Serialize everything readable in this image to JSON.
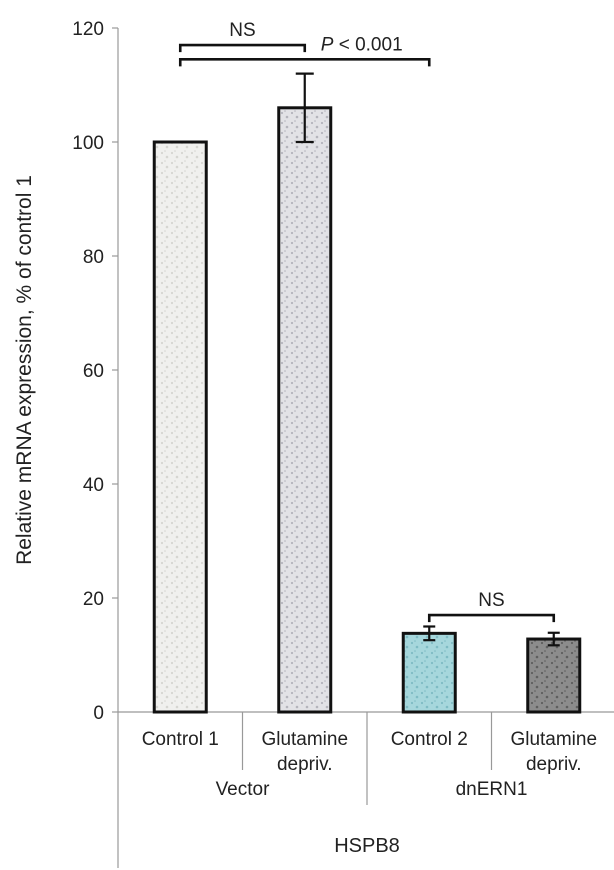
{
  "chart_data": {
    "type": "bar",
    "ylabel": "Relative mRNA expression, % of control 1",
    "ylim": [
      0,
      120
    ],
    "yticks": [
      0,
      20,
      40,
      60,
      80,
      100,
      120
    ],
    "categories": [
      "Control 1",
      "Glutamine depriv.",
      "Control 2",
      "Glutamine depriv."
    ],
    "category_lines": [
      [
        "Control 1"
      ],
      [
        "Glutamine",
        "depriv."
      ],
      [
        "Control 2"
      ],
      [
        "Glutamine",
        "depriv."
      ]
    ],
    "values": [
      100,
      106,
      13.8,
      12.8
    ],
    "errors": [
      0,
      6,
      1.2,
      1.1
    ],
    "groups": [
      {
        "label": "Vector",
        "members": [
          0,
          1
        ]
      },
      {
        "label": "dnERN1",
        "members": [
          2,
          3
        ]
      }
    ],
    "xlabel": "HSPB8",
    "bar_fills": [
      "#f0f0ee",
      "#e2e2e6",
      "#a6d7dc",
      "#8c8c8c"
    ],
    "annotations": [
      {
        "from": 0,
        "to": 1,
        "y": 117,
        "italic": "",
        "text": "NS"
      },
      {
        "from": 0,
        "to": 2,
        "y": 114.5,
        "italic": "P",
        "text": " < 0.001"
      },
      {
        "from": 2,
        "to": 3,
        "y": 17,
        "italic": "",
        "text": "NS"
      }
    ],
    "grid": false
  }
}
